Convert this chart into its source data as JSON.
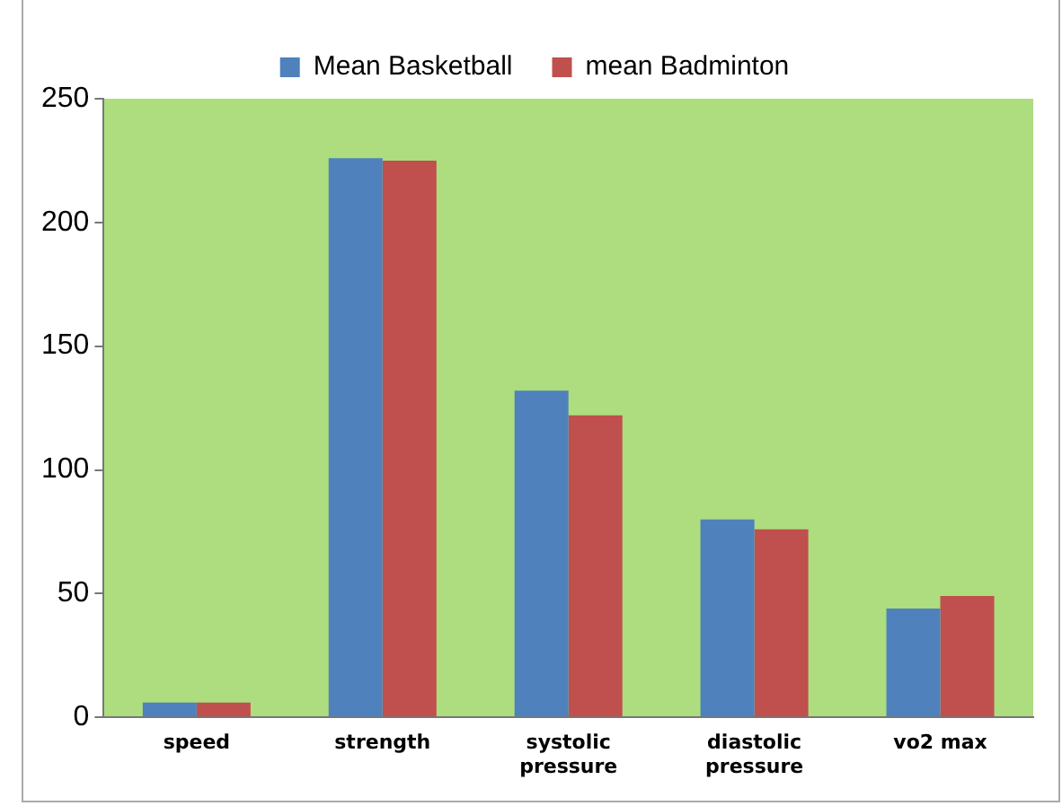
{
  "chart_data": {
    "type": "bar",
    "categories": [
      "speed",
      "strength",
      "systolic pressure",
      "diastolic pressure",
      "vo2 max"
    ],
    "series": [
      {
        "name": "Mean Basketball",
        "color": "#4f81bd",
        "values": [
          6,
          226,
          132,
          80,
          44
        ]
      },
      {
        "name": "mean Badminton",
        "color": "#c0504d",
        "values": [
          6,
          225,
          122,
          76,
          49
        ]
      }
    ],
    "ylim": [
      0,
      250
    ],
    "yticks": [
      0,
      50,
      100,
      150,
      200,
      250
    ],
    "grid": false,
    "legend": "top"
  }
}
